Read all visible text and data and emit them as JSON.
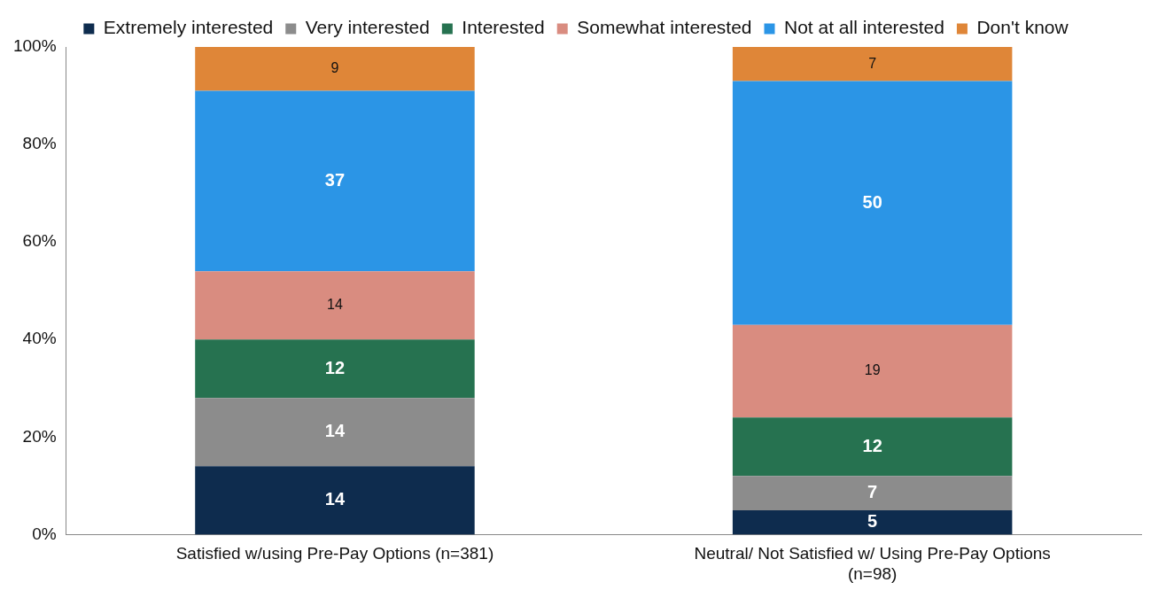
{
  "chart_data": {
    "type": "bar",
    "stacked": true,
    "categories": [
      "Satisfied w/using Pre-Pay Options (n=381)",
      "Neutral/ Not Satisfied w/ Using Pre-Pay Options (n=98)"
    ],
    "series": [
      {
        "name": "Extremely interested",
        "color": "#0e2c4e",
        "values": [
          14,
          5
        ]
      },
      {
        "name": "Very interested",
        "color": "#8c8c8c",
        "values": [
          14,
          7
        ]
      },
      {
        "name": "Interested",
        "color": "#267250",
        "values": [
          12,
          12
        ]
      },
      {
        "name": "Somewhat interested",
        "color": "#d98c80",
        "values": [
          14,
          19
        ]
      },
      {
        "name": "Not at all interested",
        "color": "#2b95e6",
        "values": [
          37,
          50
        ]
      },
      {
        "name": "Don't know",
        "color": "#df8638",
        "values": [
          9,
          7
        ]
      }
    ],
    "ylim": [
      0,
      100
    ],
    "yticks": [
      {
        "value": 0,
        "label": "0%"
      },
      {
        "value": 20,
        "label": "20%"
      },
      {
        "value": 40,
        "label": "40%"
      },
      {
        "value": 60,
        "label": "60%"
      },
      {
        "value": 80,
        "label": "80%"
      },
      {
        "value": 100,
        "label": "100%"
      }
    ],
    "grid": false,
    "legend": "top",
    "data_labels": true
  }
}
